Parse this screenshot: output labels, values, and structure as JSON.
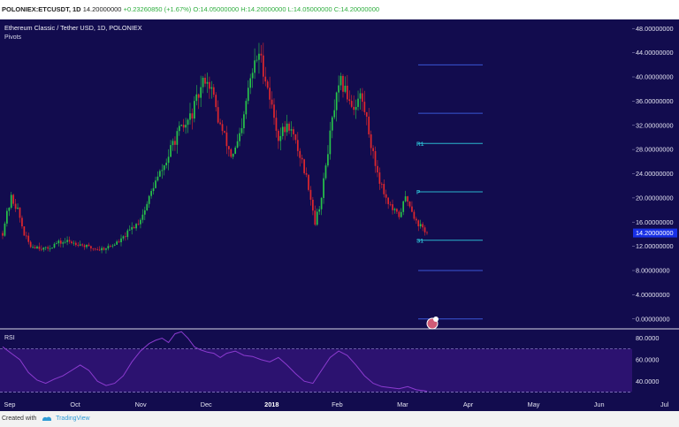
{
  "header": {
    "symbol": "POLONIEX:ETCUSDT, 1D",
    "last": "14.20000000",
    "change": "+0.23260850 (+1.67%)",
    "open": "O:14.05000000",
    "high": "H:14.20000000",
    "low": "L:14.05000000",
    "close": "C:14.20000000"
  },
  "legend": {
    "title": "Ethereum Classic / Tether USD, 1D, POLONIEX",
    "indicator": "Pivots"
  },
  "rsi_label": "RSI",
  "footer": {
    "created_with": "Created with",
    "brand": "TradingView"
  },
  "colors": {
    "background": "#120c4e",
    "up": "#27c44a",
    "down": "#e0272d",
    "rsi_line": "#8c3bd0",
    "rsi_band": "#2c1270",
    "pivot_line": "#2ab3cc",
    "outer_pivot_line": "#3a56d6",
    "price_tag": "#1830e6"
  },
  "chart_data": [
    {
      "type": "candlestick",
      "title": "Ethereum Classic / Tether USD, 1D, POLONIEX",
      "x_labels": [
        "Sep",
        "Oct",
        "Nov",
        "Dec",
        "2018",
        "Feb",
        "Mar",
        "Apr",
        "May",
        "Jun",
        "Jul"
      ],
      "y_ticks": [
        "48.00000000",
        "44.00000000",
        "40.00000000",
        "36.00000000",
        "32.00000000",
        "28.00000000",
        "24.00000000",
        "20.00000000",
        "16.00000000",
        "12.00000000",
        "8.00000000",
        "4.00000000",
        "0.00000000"
      ],
      "ylim": [
        -1.5,
        49.5
      ],
      "last_price": 14.2,
      "last_price_label": "14.20000000",
      "pivots": [
        {
          "label": "",
          "value": 42,
          "outer": true
        },
        {
          "label": "",
          "value": 34,
          "outer": true
        },
        {
          "label": "R1",
          "value": 29
        },
        {
          "label": "P",
          "value": 21
        },
        {
          "label": "S1",
          "value": 13
        },
        {
          "label": "",
          "value": 8,
          "outer": true
        },
        {
          "label": "",
          "value": 0,
          "outer": true
        }
      ],
      "trend": [
        [
          1,
          16
        ],
        [
          4,
          20
        ],
        [
          7,
          18
        ],
        [
          10,
          14
        ],
        [
          13,
          12
        ],
        [
          16,
          12
        ],
        [
          20,
          11.5
        ],
        [
          25,
          12.5
        ],
        [
          30,
          12.8
        ],
        [
          35,
          12.5
        ],
        [
          40,
          11.8
        ],
        [
          45,
          11.5
        ],
        [
          50,
          12
        ],
        [
          55,
          13
        ],
        [
          60,
          15
        ],
        [
          63,
          16
        ],
        [
          66,
          18
        ],
        [
          70,
          22
        ],
        [
          73,
          24
        ],
        [
          76,
          26
        ],
        [
          79,
          29
        ],
        [
          82,
          31
        ],
        [
          85,
          32
        ],
        [
          88,
          34
        ],
        [
          91,
          37
        ],
        [
          94,
          40
        ],
        [
          97,
          38
        ],
        [
          100,
          33
        ],
        [
          103,
          30
        ],
        [
          106,
          27
        ],
        [
          108,
          28
        ],
        [
          111,
          31
        ],
        [
          114,
          38
        ],
        [
          117,
          42
        ],
        [
          119,
          44
        ],
        [
          122,
          40
        ],
        [
          125,
          35
        ],
        [
          128,
          30
        ],
        [
          130,
          31
        ],
        [
          133,
          32
        ],
        [
          136,
          29
        ],
        [
          139,
          26
        ],
        [
          142,
          22
        ],
        [
          145,
          16
        ],
        [
          148,
          20
        ],
        [
          151,
          28
        ],
        [
          154,
          35
        ],
        [
          157,
          39
        ],
        [
          160,
          37
        ],
        [
          163,
          35
        ],
        [
          166,
          37
        ],
        [
          169,
          33
        ],
        [
          172,
          27
        ],
        [
          175,
          23
        ],
        [
          178,
          20
        ],
        [
          181,
          18
        ],
        [
          184,
          17
        ],
        [
          187,
          20
        ],
        [
          189,
          19
        ],
        [
          192,
          16
        ],
        [
          195,
          15
        ],
        [
          197,
          14.2
        ]
      ],
      "n_days": 198
    },
    {
      "type": "line",
      "title": "RSI",
      "y_ticks": [
        "80.0000",
        "60.0000",
        "40.0000"
      ],
      "ylim": [
        27,
        87
      ],
      "band": [
        30,
        70
      ],
      "points": [
        [
          0,
          72
        ],
        [
          4,
          66
        ],
        [
          8,
          60
        ],
        [
          12,
          48
        ],
        [
          16,
          41
        ],
        [
          20,
          38
        ],
        [
          24,
          42
        ],
        [
          28,
          45
        ],
        [
          32,
          50
        ],
        [
          36,
          55
        ],
        [
          40,
          50
        ],
        [
          44,
          40
        ],
        [
          48,
          36
        ],
        [
          52,
          38
        ],
        [
          56,
          45
        ],
        [
          60,
          58
        ],
        [
          64,
          68
        ],
        [
          68,
          75
        ],
        [
          71,
          78
        ],
        [
          74,
          80
        ],
        [
          77,
          76
        ],
        [
          80,
          84
        ],
        [
          83,
          86
        ],
        [
          86,
          80
        ],
        [
          89,
          72
        ],
        [
          92,
          69
        ],
        [
          95,
          67
        ],
        [
          98,
          66
        ],
        [
          101,
          62
        ],
        [
          104,
          66
        ],
        [
          108,
          68
        ],
        [
          112,
          64
        ],
        [
          116,
          63
        ],
        [
          120,
          60
        ],
        [
          124,
          58
        ],
        [
          128,
          62
        ],
        [
          132,
          55
        ],
        [
          136,
          47
        ],
        [
          140,
          40
        ],
        [
          144,
          38
        ],
        [
          148,
          50
        ],
        [
          152,
          62
        ],
        [
          156,
          68
        ],
        [
          160,
          64
        ],
        [
          164,
          55
        ],
        [
          168,
          45
        ],
        [
          172,
          38
        ],
        [
          176,
          35
        ],
        [
          180,
          34
        ],
        [
          184,
          33
        ],
        [
          188,
          35
        ],
        [
          192,
          32
        ],
        [
          196,
          31
        ],
        [
          197,
          30.5
        ]
      ]
    }
  ]
}
